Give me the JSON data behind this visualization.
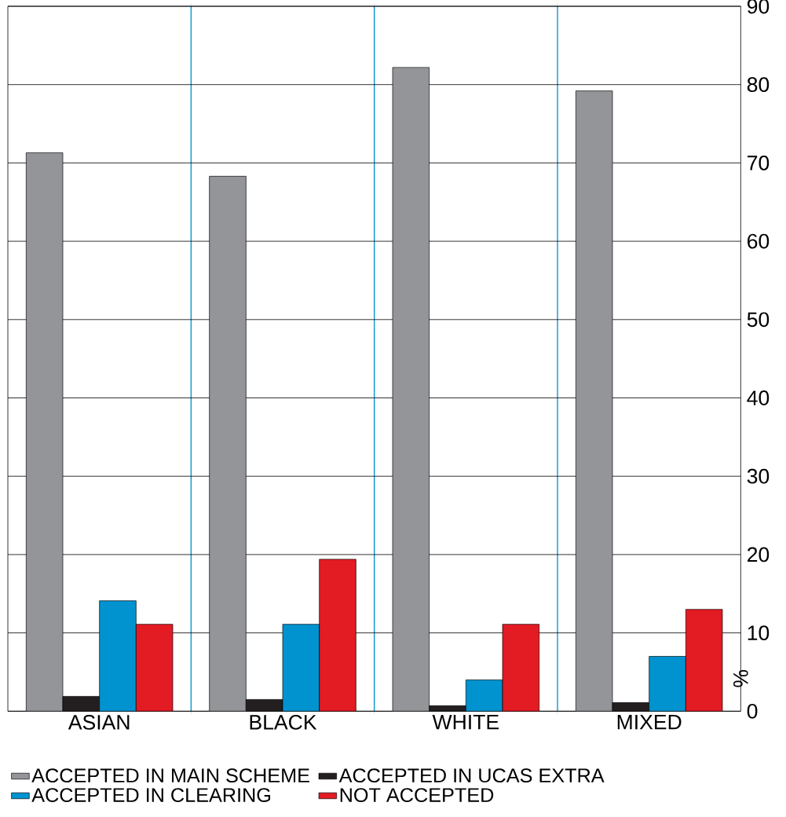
{
  "chart_data": {
    "type": "bar",
    "ylabel": "%",
    "categories": [
      "ASIAN",
      "BLACK",
      "WHITE",
      "MIXED"
    ],
    "series": [
      {
        "name": "ACCEPTED IN MAIN SCHEME",
        "color": "#939598",
        "values": [
          71.3,
          68.3,
          82.2,
          79.2
        ]
      },
      {
        "name": "ACCEPTED IN UCAS EXTRA",
        "color": "#231f20",
        "values": [
          1.9,
          1.5,
          0.7,
          1.1
        ]
      },
      {
        "name": "ACCEPTED IN CLEARING",
        "color": "#0093d0",
        "values": [
          14.1,
          11.1,
          4.0,
          7.0
        ]
      },
      {
        "name": "NOT ACCEPTED",
        "color": "#e31b23",
        "values": [
          11.1,
          19.4,
          11.1,
          13.0
        ]
      }
    ],
    "ylim": [
      0,
      90
    ],
    "yticks": [
      0,
      10,
      20,
      30,
      40,
      50,
      60,
      70,
      80,
      90
    ],
    "grid": "y",
    "legend": "bottom"
  }
}
